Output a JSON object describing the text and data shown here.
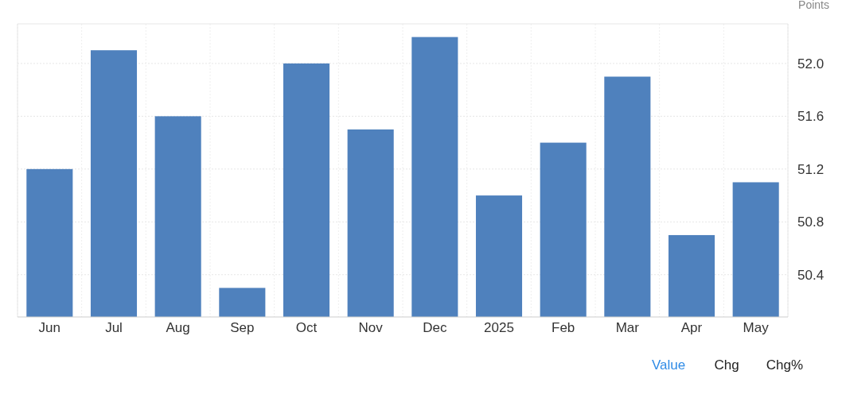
{
  "chart_data": {
    "type": "bar",
    "ylabel": "Points",
    "categories": [
      "Jun",
      "Jul",
      "Aug",
      "Sep",
      "Oct",
      "Nov",
      "Dec",
      "2025",
      "Feb",
      "Mar",
      "Apr",
      "May"
    ],
    "values": [
      51.2,
      52.1,
      51.6,
      50.3,
      52.0,
      51.5,
      52.2,
      51.0,
      51.4,
      51.9,
      50.7,
      51.1
    ],
    "color": "#4f81bd",
    "ylim": [
      50.08,
      52.3
    ],
    "yticks": [
      {
        "value": 50.4,
        "label": "50.4"
      },
      {
        "value": 50.8,
        "label": "50.8"
      },
      {
        "value": 51.2,
        "label": "51.2"
      },
      {
        "value": 51.6,
        "label": "51.6"
      },
      {
        "value": 52.0,
        "label": "52.0"
      }
    ],
    "grid": true,
    "annotations": [
      "Value",
      "Chg",
      "Chg%"
    ]
  }
}
